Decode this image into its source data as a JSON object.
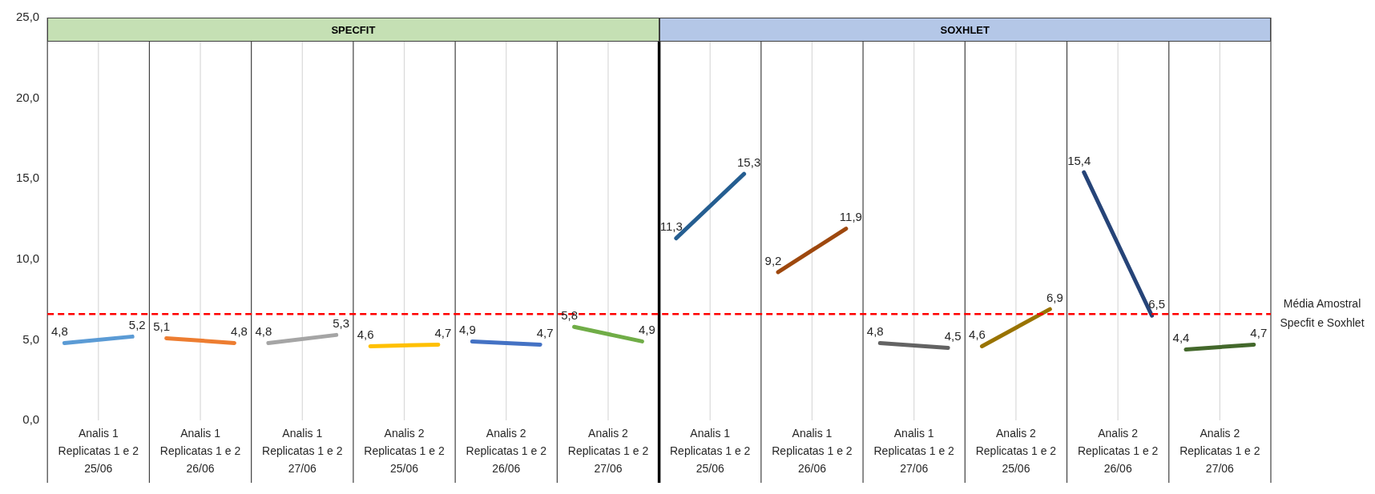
{
  "chart_data": {
    "type": "line",
    "categories": [
      null,
      "Analis 1\nReplicatas 1 e 2\n25/06",
      null,
      null,
      "Analis 1\nReplicatas 1 e 2\n26/06",
      null,
      null,
      "Analis 1\nReplicatas 1 e 2\n27/06",
      null,
      null,
      "Analis 2\nReplicatas 1 e 2\n25/06",
      null,
      null,
      "Analis 2\nReplicatas 1 e 2\n26/06",
      null,
      null,
      "Analis 2\nReplicatas 1 e 2\n27/06",
      null,
      null,
      "Analis 1\nReplicatas 1 e 2\n25/06",
      null,
      null,
      "Analis 1\nReplicatas 1 e 2\n26/06",
      null,
      null,
      "Analis 1\nReplicatas 1 e 2\n27/06",
      null,
      null,
      "Analis 2\nReplicatas 1 e 2\n25/06",
      null,
      null,
      "Analis 2\nReplicatas 1 e 2\n26/06",
      null,
      null,
      "Analis 2\nReplicatas 1 e 2\n27/06",
      null
    ],
    "series": [
      {
        "color": "#5b9bd5",
        "values": [
          4.8,
          null,
          5.2,
          null,
          null,
          null,
          null,
          null,
          null,
          null,
          null,
          null,
          null,
          null,
          null,
          null,
          null,
          null,
          null,
          null,
          null,
          null,
          null,
          null,
          null,
          null,
          null,
          null,
          null,
          null,
          null,
          null,
          null,
          null,
          null,
          null
        ],
        "value_labels": [
          "4,8",
          null,
          "5,2",
          null,
          null,
          null,
          null,
          null,
          null,
          null,
          null,
          null,
          null,
          null,
          null,
          null,
          null,
          null,
          null,
          null,
          null,
          null,
          null,
          null,
          null,
          null,
          null,
          null,
          null,
          null,
          null,
          null,
          null,
          null,
          null,
          null
        ]
      },
      {
        "color": "#ed7d31",
        "values": [
          null,
          null,
          null,
          5.1,
          null,
          4.8,
          null,
          null,
          null,
          null,
          null,
          null,
          null,
          null,
          null,
          null,
          null,
          null,
          null,
          null,
          null,
          null,
          null,
          null,
          null,
          null,
          null,
          null,
          null,
          null,
          null,
          null,
          null,
          null,
          null,
          null
        ],
        "value_labels": [
          null,
          null,
          null,
          "5,1",
          null,
          "4,8",
          null,
          null,
          null,
          null,
          null,
          null,
          null,
          null,
          null,
          null,
          null,
          null,
          null,
          null,
          null,
          null,
          null,
          null,
          null,
          null,
          null,
          null,
          null,
          null,
          null,
          null,
          null,
          null,
          null,
          null
        ]
      },
      {
        "color": "#a5a5a5",
        "values": [
          null,
          null,
          null,
          null,
          null,
          null,
          4.8,
          null,
          5.3,
          null,
          null,
          null,
          null,
          null,
          null,
          null,
          null,
          null,
          null,
          null,
          null,
          null,
          null,
          null,
          null,
          null,
          null,
          null,
          null,
          null,
          null,
          null,
          null,
          null,
          null,
          null
        ],
        "value_labels": [
          null,
          null,
          null,
          null,
          null,
          null,
          "4,8",
          null,
          "5,3",
          null,
          null,
          null,
          null,
          null,
          null,
          null,
          null,
          null,
          null,
          null,
          null,
          null,
          null,
          null,
          null,
          null,
          null,
          null,
          null,
          null,
          null,
          null,
          null,
          null,
          null,
          null
        ]
      },
      {
        "color": "#ffc000",
        "values": [
          null,
          null,
          null,
          null,
          null,
          null,
          null,
          null,
          null,
          4.6,
          null,
          4.7,
          null,
          null,
          null,
          null,
          null,
          null,
          null,
          null,
          null,
          null,
          null,
          null,
          null,
          null,
          null,
          null,
          null,
          null,
          null,
          null,
          null,
          null,
          null,
          null
        ],
        "value_labels": [
          null,
          null,
          null,
          null,
          null,
          null,
          null,
          null,
          null,
          "4,6",
          null,
          "4,7",
          null,
          null,
          null,
          null,
          null,
          null,
          null,
          null,
          null,
          null,
          null,
          null,
          null,
          null,
          null,
          null,
          null,
          null,
          null,
          null,
          null,
          null,
          null,
          null
        ]
      },
      {
        "color": "#4472c4",
        "values": [
          null,
          null,
          null,
          null,
          null,
          null,
          null,
          null,
          null,
          null,
          null,
          null,
          4.9,
          null,
          4.7,
          null,
          null,
          null,
          null,
          null,
          null,
          null,
          null,
          null,
          null,
          null,
          null,
          null,
          null,
          null,
          null,
          null,
          null,
          null,
          null,
          null
        ],
        "value_labels": [
          null,
          null,
          null,
          null,
          null,
          null,
          null,
          null,
          null,
          null,
          null,
          null,
          "4,9",
          null,
          "4,7",
          null,
          null,
          null,
          null,
          null,
          null,
          null,
          null,
          null,
          null,
          null,
          null,
          null,
          null,
          null,
          null,
          null,
          null,
          null,
          null,
          null
        ]
      },
      {
        "color": "#70ad47",
        "values": [
          null,
          null,
          null,
          null,
          null,
          null,
          null,
          null,
          null,
          null,
          null,
          null,
          null,
          null,
          null,
          5.8,
          null,
          4.9,
          null,
          null,
          null,
          null,
          null,
          null,
          null,
          null,
          null,
          null,
          null,
          null,
          null,
          null,
          null,
          null,
          null,
          null
        ],
        "value_labels": [
          null,
          null,
          null,
          null,
          null,
          null,
          null,
          null,
          null,
          null,
          null,
          null,
          null,
          null,
          null,
          "5,8",
          null,
          "4,9",
          null,
          null,
          null,
          null,
          null,
          null,
          null,
          null,
          null,
          null,
          null,
          null,
          null,
          null,
          null,
          null,
          null,
          null
        ]
      },
      {
        "color": "#255e91",
        "values": [
          null,
          null,
          null,
          null,
          null,
          null,
          null,
          null,
          null,
          null,
          null,
          null,
          null,
          null,
          null,
          null,
          null,
          null,
          11.3,
          null,
          15.3,
          null,
          null,
          null,
          null,
          null,
          null,
          null,
          null,
          null,
          null,
          null,
          null,
          null,
          null,
          null
        ],
        "value_labels": [
          null,
          null,
          null,
          null,
          null,
          null,
          null,
          null,
          null,
          null,
          null,
          null,
          null,
          null,
          null,
          null,
          null,
          null,
          "11,3",
          null,
          "15,3",
          null,
          null,
          null,
          null,
          null,
          null,
          null,
          null,
          null,
          null,
          null,
          null,
          null,
          null,
          null
        ]
      },
      {
        "color": "#9e480e",
        "values": [
          null,
          null,
          null,
          null,
          null,
          null,
          null,
          null,
          null,
          null,
          null,
          null,
          null,
          null,
          null,
          null,
          null,
          null,
          null,
          null,
          null,
          9.2,
          null,
          11.9,
          null,
          null,
          null,
          null,
          null,
          null,
          null,
          null,
          null,
          null,
          null,
          null
        ],
        "value_labels": [
          null,
          null,
          null,
          null,
          null,
          null,
          null,
          null,
          null,
          null,
          null,
          null,
          null,
          null,
          null,
          null,
          null,
          null,
          null,
          null,
          null,
          "9,2",
          null,
          "11,9",
          null,
          null,
          null,
          null,
          null,
          null,
          null,
          null,
          null,
          null,
          null,
          null
        ]
      },
      {
        "color": "#636363",
        "values": [
          null,
          null,
          null,
          null,
          null,
          null,
          null,
          null,
          null,
          null,
          null,
          null,
          null,
          null,
          null,
          null,
          null,
          null,
          null,
          null,
          null,
          null,
          null,
          null,
          4.8,
          null,
          4.5,
          null,
          null,
          null,
          null,
          null,
          null,
          null,
          null,
          null
        ],
        "value_labels": [
          null,
          null,
          null,
          null,
          null,
          null,
          null,
          null,
          null,
          null,
          null,
          null,
          null,
          null,
          null,
          null,
          null,
          null,
          null,
          null,
          null,
          null,
          null,
          null,
          "4,8",
          null,
          "4,5",
          null,
          null,
          null,
          null,
          null,
          null,
          null,
          null,
          null
        ]
      },
      {
        "color": "#997300",
        "values": [
          null,
          null,
          null,
          null,
          null,
          null,
          null,
          null,
          null,
          null,
          null,
          null,
          null,
          null,
          null,
          null,
          null,
          null,
          null,
          null,
          null,
          null,
          null,
          null,
          null,
          null,
          null,
          4.6,
          null,
          6.9,
          null,
          null,
          null,
          null,
          null,
          null
        ],
        "value_labels": [
          null,
          null,
          null,
          null,
          null,
          null,
          null,
          null,
          null,
          null,
          null,
          null,
          null,
          null,
          null,
          null,
          null,
          null,
          null,
          null,
          null,
          null,
          null,
          null,
          null,
          null,
          null,
          "4,6",
          null,
          "6,9",
          null,
          null,
          null,
          null,
          null,
          null
        ]
      },
      {
        "color": "#264478",
        "values": [
          null,
          null,
          null,
          null,
          null,
          null,
          null,
          null,
          null,
          null,
          null,
          null,
          null,
          null,
          null,
          null,
          null,
          null,
          null,
          null,
          null,
          null,
          null,
          null,
          null,
          null,
          null,
          null,
          null,
          null,
          15.4,
          null,
          6.5,
          null,
          null,
          null
        ],
        "value_labels": [
          null,
          null,
          null,
          null,
          null,
          null,
          null,
          null,
          null,
          null,
          null,
          null,
          null,
          null,
          null,
          null,
          null,
          null,
          null,
          null,
          null,
          null,
          null,
          null,
          null,
          null,
          null,
          null,
          null,
          null,
          "15,4",
          null,
          "6,5",
          null,
          null,
          null
        ]
      },
      {
        "color": "#43682b",
        "values": [
          null,
          null,
          null,
          null,
          null,
          null,
          null,
          null,
          null,
          null,
          null,
          null,
          null,
          null,
          null,
          null,
          null,
          null,
          null,
          null,
          null,
          null,
          null,
          null,
          null,
          null,
          null,
          null,
          null,
          null,
          null,
          null,
          null,
          4.4,
          null,
          4.7
        ],
        "value_labels": [
          null,
          null,
          null,
          null,
          null,
          null,
          null,
          null,
          null,
          null,
          null,
          null,
          null,
          null,
          null,
          null,
          null,
          null,
          null,
          null,
          null,
          null,
          null,
          null,
          null,
          null,
          null,
          null,
          null,
          null,
          null,
          null,
          null,
          "4,4",
          null,
          "4,7"
        ]
      }
    ],
    "ylim": [
      0,
      25
    ],
    "yticks": [
      {
        "value": 0,
        "label": "0,0"
      },
      {
        "value": 5,
        "label": "5,0"
      },
      {
        "value": 10,
        "label": "10,0"
      },
      {
        "value": 15,
        "label": "15,0"
      },
      {
        "value": 20,
        "label": "20,0"
      },
      {
        "value": 25,
        "label": "25,0"
      }
    ],
    "ref_lines": [
      {
        "axis": "y",
        "value": 6.6,
        "label": "Média Amostral Specfit e Soxhlet",
        "color": "#ff0000",
        "line_style": "dashed"
      }
    ],
    "annotations": [
      "SPECFIT",
      "SOXHLET"
    ],
    "grid": "x",
    "legend": false,
    "marker": "none",
    "line_style": "solid"
  }
}
